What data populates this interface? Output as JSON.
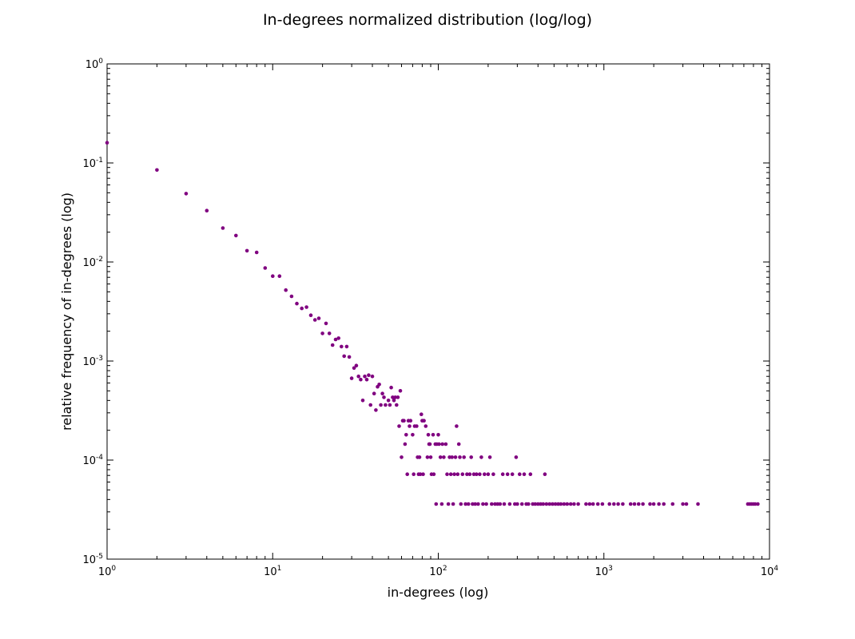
{
  "chart_data": {
    "type": "scatter",
    "title": "In-degrees normalized distribution (log/log)",
    "xlabel": "in-degrees (log)",
    "ylabel": "relative frequency of in-degrees (log)",
    "xscale": "log",
    "yscale": "log",
    "xlim": [
      1,
      10000
    ],
    "ylim": [
      1e-05,
      1
    ],
    "grid": false,
    "marker_color": "#800080",
    "x_tick_labels": [
      {
        "base": "10",
        "exp": "0"
      },
      {
        "base": "10",
        "exp": "1"
      },
      {
        "base": "10",
        "exp": "2"
      },
      {
        "base": "10",
        "exp": "3"
      },
      {
        "base": "10",
        "exp": "4"
      }
    ],
    "y_tick_labels": [
      {
        "base": "10",
        "exp": "-5"
      },
      {
        "base": "10",
        "exp": "-4"
      },
      {
        "base": "10",
        "exp": "-3"
      },
      {
        "base": "10",
        "exp": "-2"
      },
      {
        "base": "10",
        "exp": "-1"
      },
      {
        "base": "10",
        "exp": "0"
      }
    ],
    "points": [
      [
        1,
        0.16
      ],
      [
        2,
        0.085
      ],
      [
        3,
        0.049
      ],
      [
        4,
        0.033
      ],
      [
        5,
        0.022
      ],
      [
        6,
        0.0185
      ],
      [
        7,
        0.013
      ],
      [
        8,
        0.0125
      ],
      [
        9,
        0.0087
      ],
      [
        10,
        0.0072
      ],
      [
        11,
        0.0072
      ],
      [
        12,
        0.0052
      ],
      [
        13,
        0.0045
      ],
      [
        14,
        0.0038
      ],
      [
        15,
        0.0034
      ],
      [
        16,
        0.0035
      ],
      [
        17,
        0.0029
      ],
      [
        18,
        0.0026
      ],
      [
        19,
        0.0027
      ],
      [
        20,
        0.0019
      ],
      [
        21,
        0.0024
      ],
      [
        22,
        0.0019
      ],
      [
        23,
        0.00145
      ],
      [
        24,
        0.00165
      ],
      [
        25,
        0.0017
      ],
      [
        26,
        0.0014
      ],
      [
        27,
        0.00112
      ],
      [
        28,
        0.0014
      ],
      [
        29,
        0.0011
      ],
      [
        30,
        0.00067
      ],
      [
        31,
        0.00085
      ],
      [
        32,
        0.0009
      ],
      [
        33,
        0.0007
      ],
      [
        34,
        0.00065
      ],
      [
        35,
        0.0004
      ],
      [
        36,
        0.0007
      ],
      [
        37,
        0.00065
      ],
      [
        38,
        0.00072
      ],
      [
        39,
        0.00036
      ],
      [
        40,
        0.0007
      ],
      [
        41,
        0.00047
      ],
      [
        42,
        0.00032
      ],
      [
        43,
        0.00055
      ],
      [
        44,
        0.00058
      ],
      [
        45,
        0.00036
      ],
      [
        46,
        0.00047
      ],
      [
        47,
        0.00043
      ],
      [
        48,
        0.00036
      ],
      [
        50,
        0.0004
      ],
      [
        51,
        0.00036
      ],
      [
        52,
        0.00054
      ],
      [
        53,
        0.00043
      ],
      [
        54,
        0.0004
      ],
      [
        55,
        0.00043
      ],
      [
        56,
        0.00036
      ],
      [
        57,
        0.00043
      ],
      [
        58,
        0.00022
      ],
      [
        59,
        0.0005
      ],
      [
        60,
        0.000107
      ],
      [
        61,
        0.00025
      ],
      [
        62,
        0.00025
      ],
      [
        63,
        0.000145
      ],
      [
        64,
        0.00018
      ],
      [
        65,
        7.2e-05
      ],
      [
        66,
        0.00025
      ],
      [
        67,
        0.00022
      ],
      [
        68,
        0.00025
      ],
      [
        70,
        0.00018
      ],
      [
        71,
        7.2e-05
      ],
      [
        72,
        0.00022
      ],
      [
        74,
        0.00022
      ],
      [
        75,
        0.000107
      ],
      [
        76,
        7.2e-05
      ],
      [
        77,
        0.000107
      ],
      [
        78,
        7.2e-05
      ],
      [
        79,
        0.00029
      ],
      [
        80,
        0.00025
      ],
      [
        81,
        7.2e-05
      ],
      [
        82,
        0.00025
      ],
      [
        84,
        0.00022
      ],
      [
        86,
        0.000107
      ],
      [
        87,
        0.00018
      ],
      [
        88,
        0.000145
      ],
      [
        89,
        0.000145
      ],
      [
        90,
        0.000107
      ],
      [
        91,
        7.2e-05
      ],
      [
        93,
        0.00018
      ],
      [
        94,
        7.2e-05
      ],
      [
        96,
        0.000145
      ],
      [
        97,
        3.6e-05
      ],
      [
        98,
        0.000145
      ],
      [
        100,
        0.00018
      ],
      [
        101,
        0.000145
      ],
      [
        103,
        0.000107
      ],
      [
        105,
        3.6e-05
      ],
      [
        106,
        0.000145
      ],
      [
        108,
        0.000107
      ],
      [
        111,
        0.000145
      ],
      [
        113,
        7.2e-05
      ],
      [
        115,
        3.6e-05
      ],
      [
        117,
        0.000107
      ],
      [
        119,
        7.2e-05
      ],
      [
        121,
        0.000107
      ],
      [
        123,
        3.6e-05
      ],
      [
        125,
        7.2e-05
      ],
      [
        127,
        0.000107
      ],
      [
        129,
        0.00022
      ],
      [
        131,
        7.2e-05
      ],
      [
        133,
        0.000145
      ],
      [
        135,
        0.000107
      ],
      [
        137,
        3.6e-05
      ],
      [
        140,
        7.2e-05
      ],
      [
        143,
        0.000107
      ],
      [
        146,
        3.6e-05
      ],
      [
        149,
        7.2e-05
      ],
      [
        152,
        3.6e-05
      ],
      [
        155,
        7.2e-05
      ],
      [
        158,
        0.000107
      ],
      [
        161,
        3.6e-05
      ],
      [
        164,
        7.2e-05
      ],
      [
        167,
        3.6e-05
      ],
      [
        170,
        7.2e-05
      ],
      [
        174,
        3.6e-05
      ],
      [
        178,
        7.2e-05
      ],
      [
        182,
        0.000107
      ],
      [
        186,
        3.6e-05
      ],
      [
        190,
        7.2e-05
      ],
      [
        195,
        3.6e-05
      ],
      [
        200,
        7.2e-05
      ],
      [
        205,
        0.000107
      ],
      [
        210,
        3.6e-05
      ],
      [
        215,
        7.2e-05
      ],
      [
        220,
        3.6e-05
      ],
      [
        228,
        3.6e-05
      ],
      [
        236,
        3.6e-05
      ],
      [
        245,
        7.2e-05
      ],
      [
        250,
        3.6e-05
      ],
      [
        262,
        7.2e-05
      ],
      [
        270,
        3.6e-05
      ],
      [
        280,
        7.2e-05
      ],
      [
        290,
        3.6e-05
      ],
      [
        295,
        0.000107
      ],
      [
        300,
        3.6e-05
      ],
      [
        310,
        7.2e-05
      ],
      [
        320,
        3.6e-05
      ],
      [
        330,
        7.2e-05
      ],
      [
        340,
        3.6e-05
      ],
      [
        350,
        3.6e-05
      ],
      [
        360,
        7.2e-05
      ],
      [
        372,
        3.6e-05
      ],
      [
        385,
        3.6e-05
      ],
      [
        400,
        3.6e-05
      ],
      [
        415,
        3.6e-05
      ],
      [
        430,
        3.6e-05
      ],
      [
        440,
        7.2e-05
      ],
      [
        450,
        3.6e-05
      ],
      [
        470,
        3.6e-05
      ],
      [
        490,
        3.6e-05
      ],
      [
        510,
        3.6e-05
      ],
      [
        530,
        3.6e-05
      ],
      [
        550,
        3.6e-05
      ],
      [
        575,
        3.6e-05
      ],
      [
        600,
        3.6e-05
      ],
      [
        630,
        3.6e-05
      ],
      [
        660,
        3.6e-05
      ],
      [
        700,
        3.6e-05
      ],
      [
        780,
        3.6e-05
      ],
      [
        820,
        3.6e-05
      ],
      [
        860,
        3.6e-05
      ],
      [
        920,
        3.6e-05
      ],
      [
        980,
        3.6e-05
      ],
      [
        1080,
        3.6e-05
      ],
      [
        1150,
        3.6e-05
      ],
      [
        1220,
        3.6e-05
      ],
      [
        1300,
        3.6e-05
      ],
      [
        1450,
        3.6e-05
      ],
      [
        1530,
        3.6e-05
      ],
      [
        1620,
        3.6e-05
      ],
      [
        1720,
        3.6e-05
      ],
      [
        1900,
        3.6e-05
      ],
      [
        2000,
        3.6e-05
      ],
      [
        2150,
        3.6e-05
      ],
      [
        2300,
        3.6e-05
      ],
      [
        2600,
        3.6e-05
      ],
      [
        3000,
        3.6e-05
      ],
      [
        3150,
        3.6e-05
      ],
      [
        3700,
        3.6e-05
      ],
      [
        7400,
        3.6e-05
      ],
      [
        7600,
        3.6e-05
      ],
      [
        7800,
        3.6e-05
      ],
      [
        8000,
        3.6e-05
      ],
      [
        8200,
        3.6e-05
      ],
      [
        8500,
        3.6e-05
      ]
    ]
  }
}
